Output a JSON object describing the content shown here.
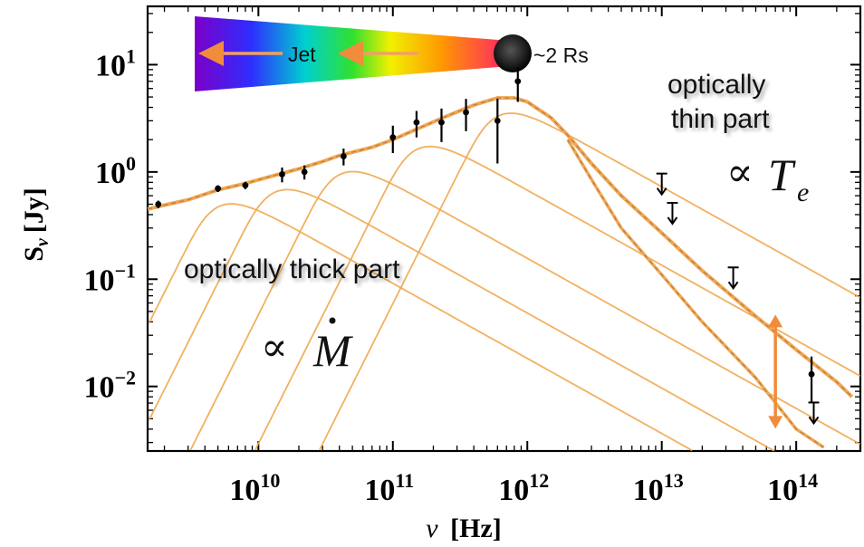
{
  "chart_data": {
    "type": "line",
    "scale": {
      "x": "log",
      "y": "log"
    },
    "xlim": [
      1500000000.0,
      300000000000000.0
    ],
    "ylim": [
      0.0025,
      35
    ],
    "xlabel": {
      "symbol": "ν",
      "unit": "[Hz]"
    },
    "ylabel": {
      "symbol": "S",
      "sub": "ν",
      "unit": "[Jy]"
    },
    "x_ticks": [
      {
        "value": 10000000000.0,
        "base": "10",
        "exp": "10"
      },
      {
        "value": 100000000000.0,
        "base": "10",
        "exp": "11"
      },
      {
        "value": 1000000000000.0,
        "base": "10",
        "exp": "12"
      },
      {
        "value": 10000000000000.0,
        "base": "10",
        "exp": "13"
      },
      {
        "value": 100000000000000.0,
        "base": "10",
        "exp": "14"
      }
    ],
    "y_ticks": [
      {
        "value": 10,
        "base": "10",
        "exp": "1"
      },
      {
        "value": 1,
        "base": "10",
        "exp": "0"
      },
      {
        "value": 0.1,
        "base": "10",
        "exp": "−1"
      },
      {
        "value": 0.01,
        "base": "10",
        "exp": "−2"
      }
    ],
    "components": [
      {
        "peak_freq": 5000000000.0,
        "peak_flux": 0.7
      },
      {
        "peak_freq": 13000000000.0,
        "peak_flux": 0.95
      },
      {
        "peak_freq": 40000000000.0,
        "peak_flux": 1.4
      },
      {
        "peak_freq": 150000000000.0,
        "peak_flux": 2.4
      },
      {
        "peak_freq": 600000000000.0,
        "peak_flux": 4.9
      }
    ],
    "total_fit": [
      [
        1500000000.0,
        0.45
      ],
      [
        2000000000.0,
        0.49
      ],
      [
        3000000000.0,
        0.55
      ],
      [
        5000000000.0,
        0.68
      ],
      [
        8000000000.0,
        0.78
      ],
      [
        12000000000.0,
        0.9
      ],
      [
        20000000000.0,
        1.07
      ],
      [
        30000000000.0,
        1.25
      ],
      [
        40000000000.0,
        1.42
      ],
      [
        70000000000.0,
        1.7
      ],
      [
        100000000000.0,
        2.0
      ],
      [
        150000000000.0,
        2.5
      ],
      [
        250000000000.0,
        3.3
      ],
      [
        400000000000.0,
        4.2
      ],
      [
        600000000000.0,
        4.9
      ],
      [
        800000000000.0,
        4.9
      ],
      [
        1000000000000.0,
        4.5
      ],
      [
        1500000000000.0,
        3.2
      ],
      [
        2000000000000.0,
        2.2
      ],
      [
        3000000000000.0,
        1.2
      ],
      [
        5000000000000.0,
        0.6
      ],
      [
        10000000000000.0,
        0.27
      ],
      [
        20000000000000.0,
        0.12
      ],
      [
        50000000000000.0,
        0.045
      ],
      [
        100000000000000.0,
        0.022
      ],
      [
        200000000000000.0,
        0.011
      ],
      [
        260000000000000.0,
        0.008
      ]
    ],
    "thin_variant_fit": [
      [
        2000000000000.0,
        2.0
      ],
      [
        3000000000000.0,
        0.85
      ],
      [
        5000000000000.0,
        0.3
      ],
      [
        10000000000000.0,
        0.11
      ],
      [
        20000000000000.0,
        0.04
      ],
      [
        50000000000000.0,
        0.012
      ],
      [
        100000000000000.0,
        0.004
      ],
      [
        160000000000000.0,
        0.0027
      ]
    ],
    "data_points": [
      {
        "x": 1800000000.0,
        "y": 0.5,
        "err": 0.04
      },
      {
        "x": 5000000000.0,
        "y": 0.7,
        "err": 0.05
      },
      {
        "x": 8000000000.0,
        "y": 0.75,
        "err": 0.06
      },
      {
        "x": 15000000000.0,
        "y": 0.95,
        "err": 0.15
      },
      {
        "x": 22000000000.0,
        "y": 1.0,
        "err": 0.15
      },
      {
        "x": 43000000000.0,
        "y": 1.4,
        "err": 0.25
      },
      {
        "x": 100000000000.0,
        "y": 2.1,
        "err": 0.6
      },
      {
        "x": 150000000000.0,
        "y": 2.9,
        "err": 0.8
      },
      {
        "x": 230000000000.0,
        "y": 2.9,
        "err": 1.0
      },
      {
        "x": 350000000000.0,
        "y": 3.6,
        "err": 1.2
      },
      {
        "x": 600000000000.0,
        "y": 3.0,
        "err": 1.8
      },
      {
        "x": 850000000000.0,
        "y": 7.0,
        "err": 2.5
      },
      {
        "x": 130000000000000.0,
        "y": 0.013,
        "err": 0.006
      }
    ],
    "upper_limits": [
      {
        "x": 10000000000000.0,
        "y": 0.75
      },
      {
        "x": 12000000000000.0,
        "y": 0.4
      },
      {
        "x": 34000000000000.0,
        "y": 0.1
      },
      {
        "x": 135000000000000.0,
        "y": 0.0055
      }
    ],
    "arrow": {
      "x": 70000000000000.0,
      "y_top": 0.045,
      "y_bottom": 0.0042
    },
    "annotations": {
      "jet_label": "Jet",
      "rs_label": "~2 Rs",
      "thin_line1": "optically",
      "thin_line2": "thin part",
      "thin_propto": "∝",
      "thin_symbol": "T",
      "thin_sub": "e",
      "thick_label": "optically thick part",
      "thick_propto": "∝",
      "thick_symbol": "M"
    },
    "colors": {
      "curve": "#F0A850",
      "arrow": "#F08C3C",
      "frame": "#000000",
      "dashed": "#B87A50"
    }
  }
}
